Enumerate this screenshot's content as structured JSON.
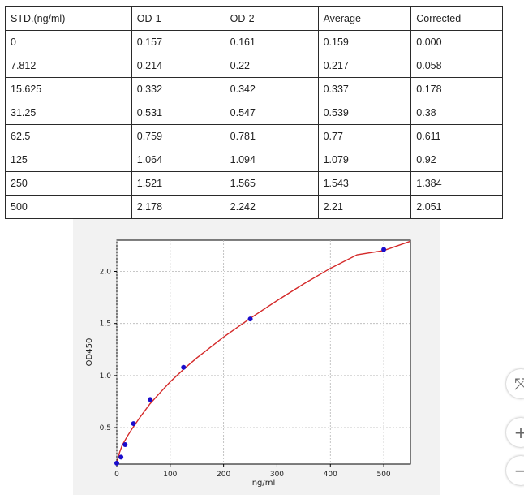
{
  "table": {
    "headers": [
      "STD.(ng/ml)",
      "OD-1",
      "OD-2",
      "Average",
      "Corrected"
    ],
    "rows": [
      [
        "0",
        "0.157",
        "0.161",
        "0.159",
        "0.000"
      ],
      [
        "7.812",
        "0.214",
        "0.22",
        "0.217",
        "0.058"
      ],
      [
        "15.625",
        "0.332",
        "0.342",
        "0.337",
        "0.178"
      ],
      [
        "31.25",
        "0.531",
        "0.547",
        "0.539",
        "0.38"
      ],
      [
        "62.5",
        "0.759",
        "0.781",
        "0.77",
        "0.611"
      ],
      [
        "125",
        "1.064",
        "1.094",
        "1.079",
        "0.92"
      ],
      [
        "250",
        "1.521",
        "1.565",
        "1.543",
        "1.384"
      ],
      [
        "500",
        "2.178",
        "2.242",
        "2.21",
        "2.051"
      ]
    ]
  },
  "chart_data": {
    "type": "scatter",
    "xlabel": "ng/ml",
    "ylabel": "OD450",
    "xlim": [
      0,
      550
    ],
    "ylim": [
      0.15,
      2.3
    ],
    "xticks": [
      0,
      100,
      200,
      300,
      400,
      500
    ],
    "xtick_labels": [
      "0",
      "100",
      "200",
      "300",
      "400",
      "500"
    ],
    "yticks": [
      0.5,
      1.0,
      1.5,
      2.0
    ],
    "ytick_labels": [
      "0.5",
      "1.0",
      "1.5",
      "2.0"
    ],
    "grid": true,
    "points": {
      "x": [
        0,
        7.812,
        15.625,
        31.25,
        62.5,
        125,
        250,
        500
      ],
      "y": [
        0.159,
        0.217,
        0.337,
        0.539,
        0.77,
        1.079,
        1.543,
        2.21
      ]
    },
    "curve": {
      "x": [
        0,
        5,
        10,
        20,
        30,
        45,
        62.5,
        80,
        100,
        125,
        150,
        200,
        250,
        300,
        350,
        400,
        450,
        500,
        550
      ],
      "y": [
        0.16,
        0.26,
        0.33,
        0.42,
        0.5,
        0.61,
        0.73,
        0.83,
        0.94,
        1.06,
        1.17,
        1.37,
        1.55,
        1.72,
        1.88,
        2.03,
        2.16,
        2.2,
        2.29
      ]
    },
    "colors": {
      "points": "#1a0dcc",
      "curve": "#d42a2a",
      "grid": "#b5b5b5"
    }
  },
  "controls": {
    "buttons": [
      {
        "name": "fit-button",
        "icon": "fit-arrows-icon",
        "glyph": "⤧"
      },
      {
        "name": "zoom-in-button",
        "icon": "plus-icon",
        "glyph": "+"
      },
      {
        "name": "zoom-out-button",
        "icon": "minus-icon",
        "glyph": "−"
      }
    ]
  }
}
